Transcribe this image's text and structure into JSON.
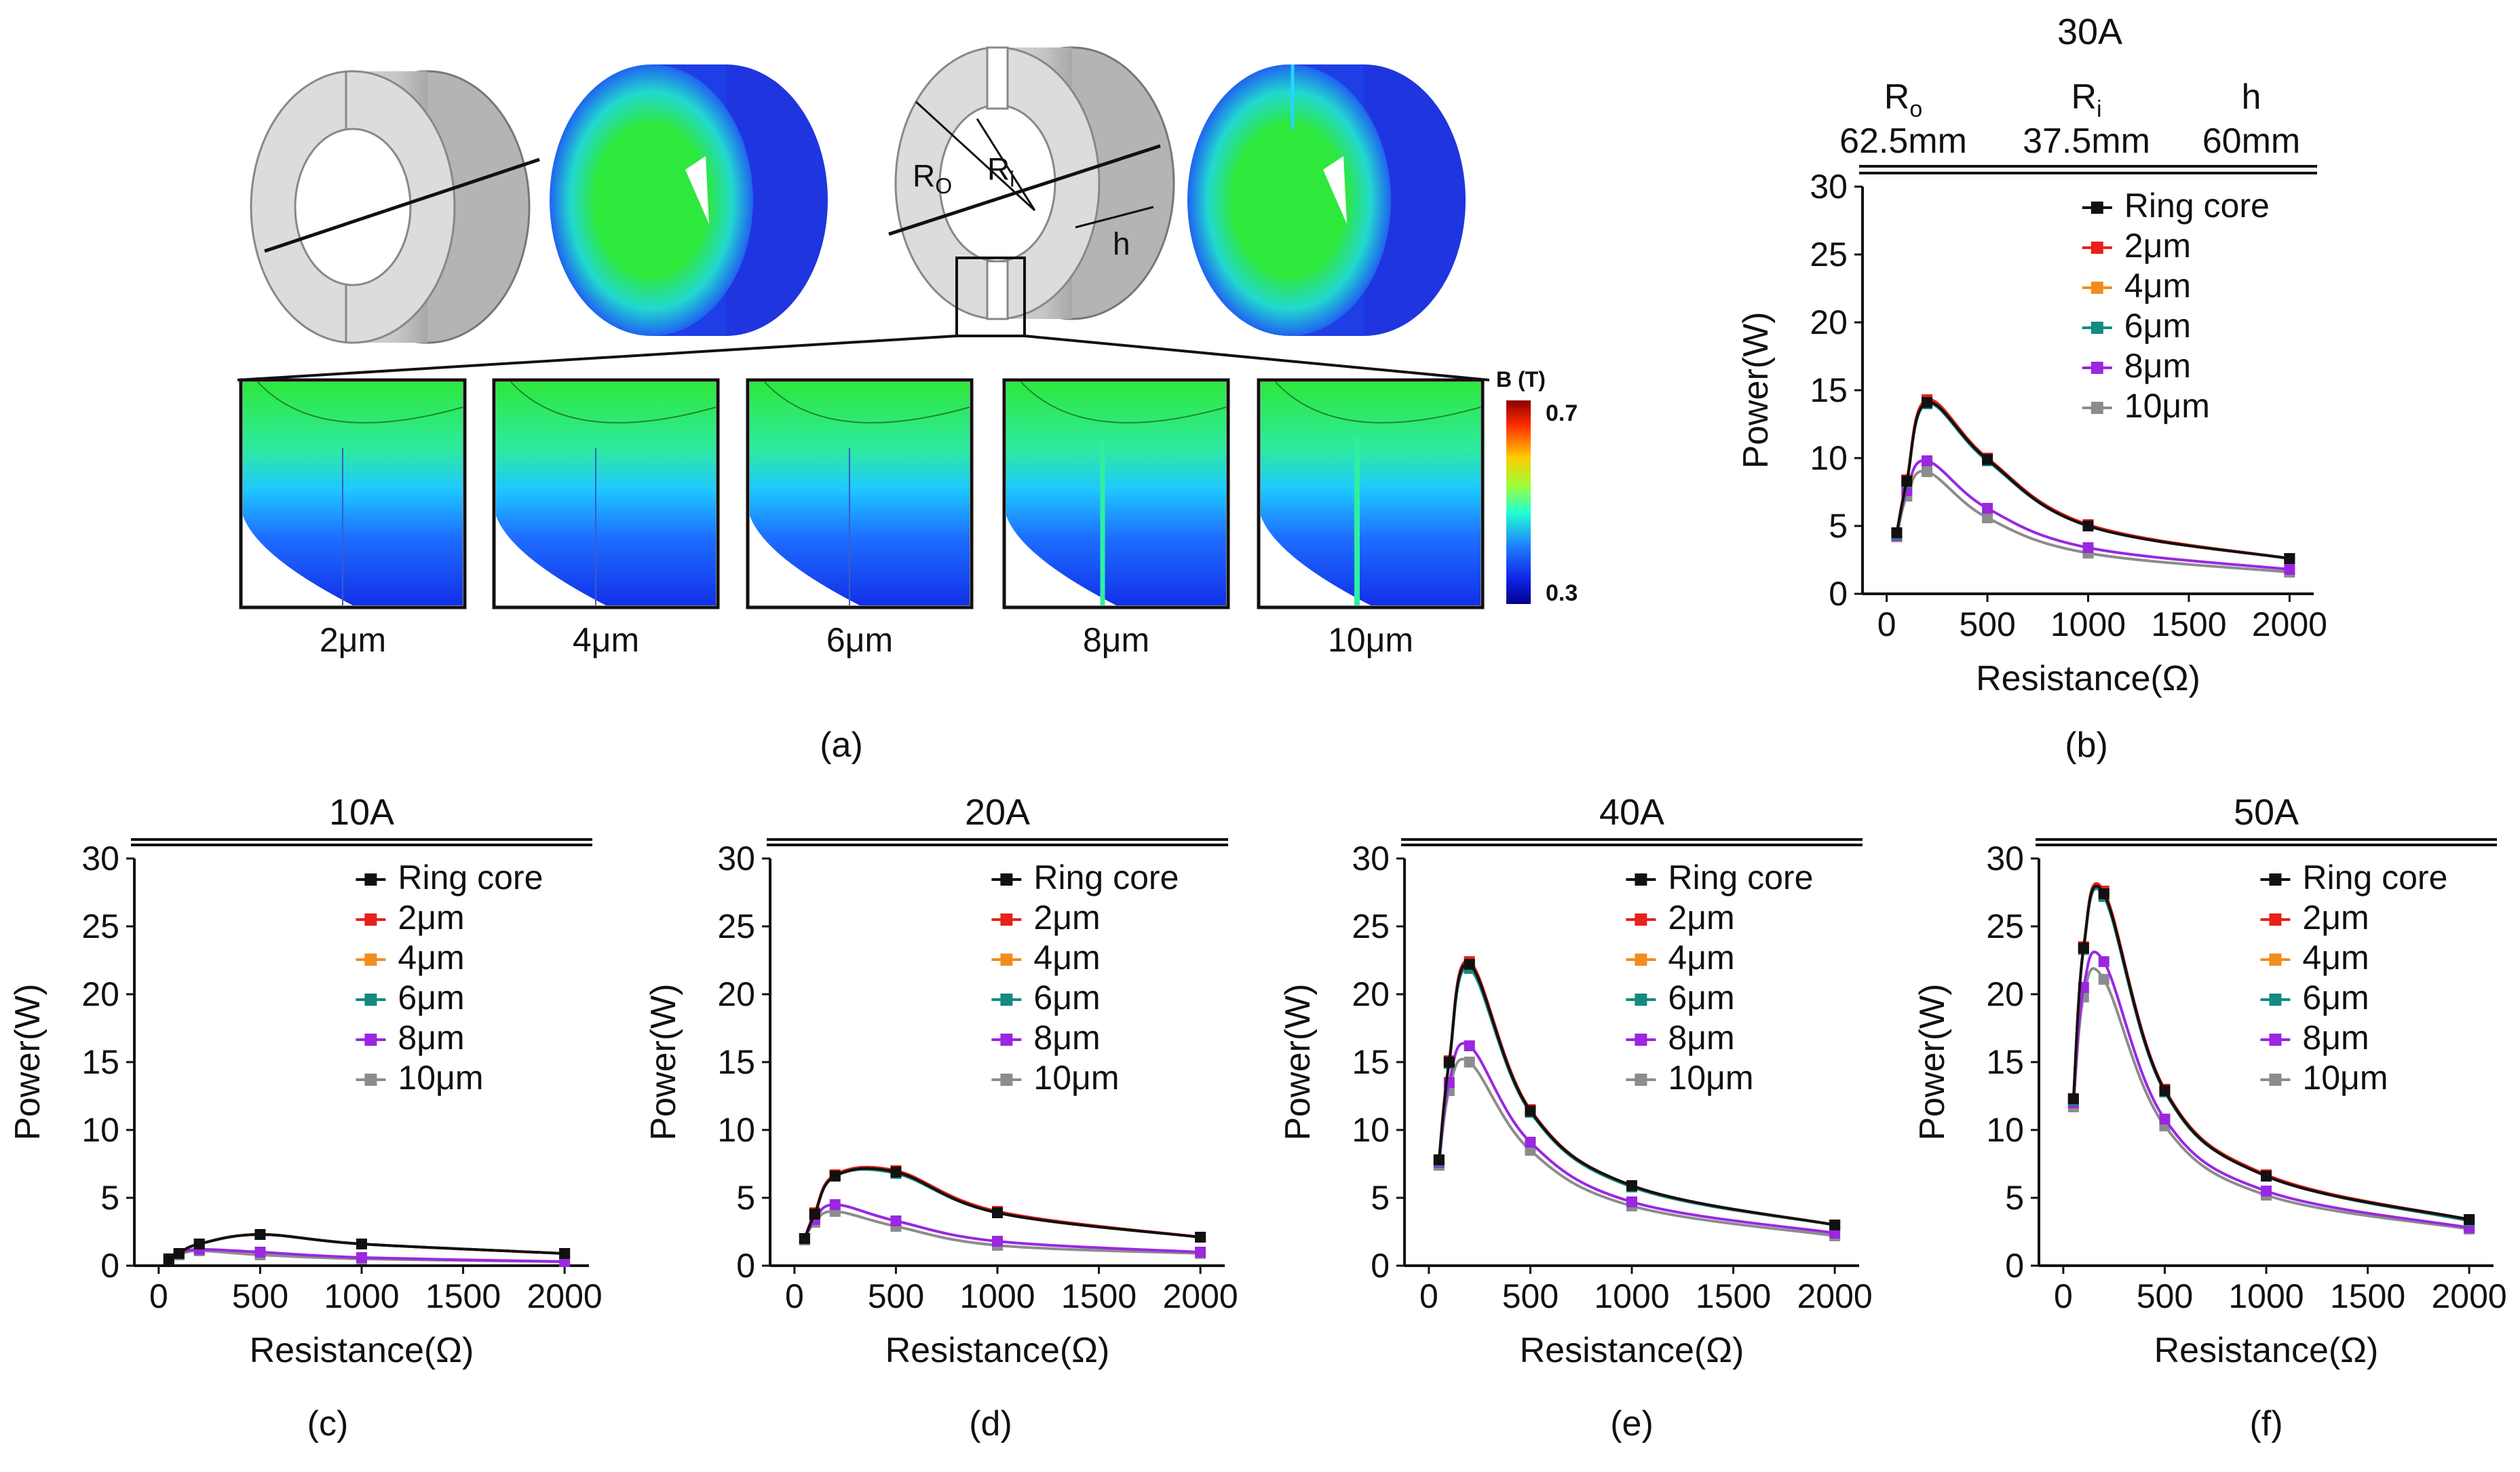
{
  "panel_a": {
    "caption": "(a)",
    "labels": {
      "outer_radius": "R",
      "outer_radius_sub": "O",
      "inner_radius": "R",
      "inner_radius_sub": "i",
      "height": "h"
    },
    "colorbar": {
      "title": "B (T)",
      "max": "0.7",
      "min": "0.3"
    },
    "zoom_labels": [
      "2μm",
      "4μm",
      "6μm",
      "8μm",
      "10μm"
    ]
  },
  "panel_b_header": {
    "current": "30A",
    "params": [
      {
        "name": "R",
        "sub": "o",
        "value": "62.5mm"
      },
      {
        "name": "R",
        "sub": "i",
        "value": "37.5mm"
      },
      {
        "name": "h",
        "sub": "",
        "value": "60mm"
      }
    ]
  },
  "colors": {
    "Ring core": "#111111",
    "2μm": "#e8211a",
    "4μm": "#f28c1e",
    "6μm": "#148a80",
    "8μm": "#9b27e0",
    "10μm": "#8c8c8c"
  },
  "chart_data": [
    {
      "id": "b",
      "caption": "(b)",
      "title": "",
      "type": "line",
      "xlabel": "Resistance(Ω)",
      "ylabel": "Power(W)",
      "xlim": [
        -120,
        2120
      ],
      "ylim": [
        0,
        30
      ],
      "xticks": [
        0,
        500,
        1000,
        1500,
        2000
      ],
      "yticks": [
        0,
        5,
        10,
        15,
        20,
        25,
        30
      ],
      "x": [
        50,
        100,
        200,
        500,
        1000,
        2000
      ],
      "legend": [
        "Ring core",
        "2μm",
        "4μm",
        "6μm",
        "8μm",
        "10μm"
      ],
      "series": [
        {
          "name": "Ring core",
          "values": [
            4.5,
            8.3,
            14.1,
            9.9,
            5.0,
            2.6
          ]
        },
        {
          "name": "2μm",
          "values": [
            4.5,
            8.4,
            14.3,
            10.0,
            5.1,
            2.6
          ]
        },
        {
          "name": "4μm",
          "values": [
            4.5,
            8.3,
            14.1,
            9.9,
            5.0,
            2.6
          ]
        },
        {
          "name": "6μm",
          "values": [
            4.4,
            8.2,
            14.0,
            9.8,
            5.0,
            2.6
          ]
        },
        {
          "name": "8μm",
          "values": [
            4.3,
            7.6,
            9.8,
            6.3,
            3.4,
            1.8
          ]
        },
        {
          "name": "10μm",
          "values": [
            4.2,
            7.2,
            9.0,
            5.6,
            3.0,
            1.6
          ]
        }
      ]
    },
    {
      "id": "c",
      "caption": "(c)",
      "title": "10A",
      "type": "line",
      "xlabel": "Resistance(Ω)",
      "ylabel": "Power(W)",
      "xlim": [
        -120,
        2120
      ],
      "ylim": [
        0,
        30
      ],
      "xticks": [
        0,
        500,
        1000,
        1500,
        2000
      ],
      "yticks": [
        0,
        5,
        10,
        15,
        20,
        25,
        30
      ],
      "x": [
        50,
        100,
        200,
        500,
        1000,
        2000
      ],
      "legend": [
        "Ring core",
        "2μm",
        "4μm",
        "6μm",
        "8μm",
        "10μm"
      ],
      "series": [
        {
          "name": "Ring core",
          "values": [
            0.5,
            0.9,
            1.6,
            2.3,
            1.6,
            0.9
          ]
        },
        {
          "name": "2μm",
          "values": [
            0.5,
            0.9,
            1.6,
            2.3,
            1.6,
            0.9
          ]
        },
        {
          "name": "4μm",
          "values": [
            0.5,
            0.9,
            1.6,
            2.3,
            1.6,
            0.9
          ]
        },
        {
          "name": "6μm",
          "values": [
            0.5,
            0.9,
            1.6,
            2.3,
            1.6,
            0.9
          ]
        },
        {
          "name": "8μm",
          "values": [
            0.5,
            0.9,
            1.2,
            1.0,
            0.6,
            0.3
          ]
        },
        {
          "name": "10μm",
          "values": [
            0.5,
            0.8,
            1.1,
            0.8,
            0.5,
            0.3
          ]
        }
      ]
    },
    {
      "id": "d",
      "caption": "(d)",
      "title": "20A",
      "type": "line",
      "xlabel": "Resistance(Ω)",
      "ylabel": "Power(W)",
      "xlim": [
        -120,
        2120
      ],
      "ylim": [
        0,
        30
      ],
      "xticks": [
        0,
        500,
        1000,
        1500,
        2000
      ],
      "yticks": [
        0,
        5,
        10,
        15,
        20,
        25,
        30
      ],
      "x": [
        50,
        100,
        200,
        500,
        1000,
        2000
      ],
      "legend": [
        "Ring core",
        "2μm",
        "4μm",
        "6μm",
        "8μm",
        "10μm"
      ],
      "series": [
        {
          "name": "Ring core",
          "values": [
            2.0,
            3.8,
            6.6,
            6.9,
            3.9,
            2.1
          ]
        },
        {
          "name": "2μm",
          "values": [
            2.0,
            3.9,
            6.7,
            7.0,
            4.0,
            2.1
          ]
        },
        {
          "name": "4μm",
          "values": [
            2.0,
            3.8,
            6.6,
            6.9,
            3.9,
            2.1
          ]
        },
        {
          "name": "6μm",
          "values": [
            2.0,
            3.8,
            6.6,
            6.8,
            3.9,
            2.1
          ]
        },
        {
          "name": "8μm",
          "values": [
            2.0,
            3.4,
            4.5,
            3.3,
            1.8,
            1.0
          ]
        },
        {
          "name": "10μm",
          "values": [
            1.9,
            3.2,
            4.0,
            2.9,
            1.5,
            0.9
          ]
        }
      ]
    },
    {
      "id": "e",
      "caption": "(e)",
      "title": "40A",
      "type": "line",
      "xlabel": "Resistance(Ω)",
      "ylabel": "Power(W)",
      "xlim": [
        -120,
        2120
      ],
      "ylim": [
        0,
        30
      ],
      "xticks": [
        0,
        500,
        1000,
        1500,
        2000
      ],
      "yticks": [
        0,
        5,
        10,
        15,
        20,
        25,
        30
      ],
      "x": [
        50,
        100,
        200,
        500,
        1000,
        2000
      ],
      "legend": [
        "Ring core",
        "2μm",
        "4μm",
        "6μm",
        "8μm",
        "10μm"
      ],
      "series": [
        {
          "name": "Ring core",
          "values": [
            7.8,
            15.0,
            22.2,
            11.4,
            5.9,
            3.0
          ]
        },
        {
          "name": "2μm",
          "values": [
            7.8,
            15.1,
            22.4,
            11.5,
            5.9,
            3.0
          ]
        },
        {
          "name": "4μm",
          "values": [
            7.8,
            15.0,
            22.2,
            11.4,
            5.9,
            3.0
          ]
        },
        {
          "name": "6μm",
          "values": [
            7.7,
            14.9,
            21.9,
            11.3,
            5.8,
            3.0
          ]
        },
        {
          "name": "8μm",
          "values": [
            7.6,
            13.5,
            16.2,
            9.1,
            4.7,
            2.4
          ]
        },
        {
          "name": "10μm",
          "values": [
            7.4,
            12.9,
            15.0,
            8.5,
            4.4,
            2.2
          ]
        }
      ]
    },
    {
      "id": "f",
      "caption": "(f)",
      "title": "50A",
      "type": "line",
      "xlabel": "Resistance(Ω)",
      "ylabel": "Power(W)",
      "xlim": [
        -120,
        2120
      ],
      "ylim": [
        0,
        30
      ],
      "xticks": [
        0,
        500,
        1000,
        1500,
        2000
      ],
      "yticks": [
        0,
        5,
        10,
        15,
        20,
        25,
        30
      ],
      "x": [
        50,
        100,
        200,
        500,
        1000,
        2000
      ],
      "legend": [
        "Ring core",
        "2μm",
        "4μm",
        "6μm",
        "8μm",
        "10μm"
      ],
      "series": [
        {
          "name": "Ring core",
          "values": [
            12.3,
            23.4,
            27.4,
            12.9,
            6.6,
            3.4
          ]
        },
        {
          "name": "2μm",
          "values": [
            12.3,
            23.5,
            27.6,
            13.0,
            6.7,
            3.4
          ]
        },
        {
          "name": "4μm",
          "values": [
            12.3,
            23.4,
            27.4,
            12.9,
            6.6,
            3.4
          ]
        },
        {
          "name": "6μm",
          "values": [
            12.2,
            23.3,
            27.2,
            12.8,
            6.6,
            3.3
          ]
        },
        {
          "name": "8μm",
          "values": [
            12.0,
            20.5,
            22.4,
            10.8,
            5.5,
            2.8
          ]
        },
        {
          "name": "10μm",
          "values": [
            11.7,
            19.8,
            21.1,
            10.3,
            5.2,
            2.7
          ]
        }
      ]
    }
  ]
}
